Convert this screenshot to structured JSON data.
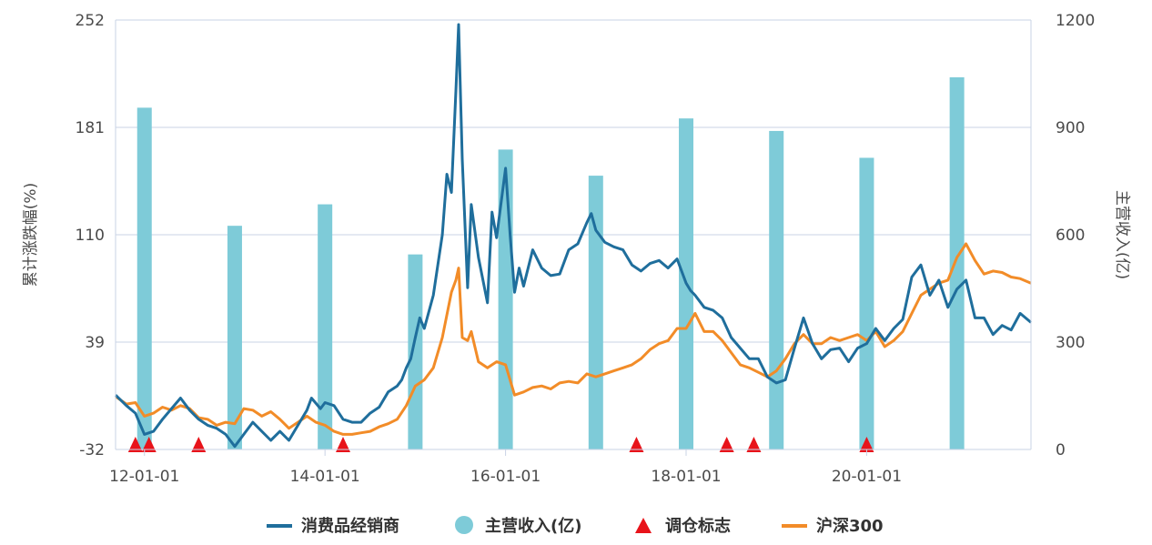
{
  "chart_data": {
    "type": "line",
    "left_axis": {
      "title": "累计涨跌幅(%)",
      "ticks": [
        "252",
        "181",
        "110",
        "39",
        "-32"
      ],
      "range": [
        -32,
        252
      ]
    },
    "right_axis": {
      "title": "主营收入(亿)",
      "ticks": [
        "1200",
        "900",
        "600",
        "300",
        "0"
      ],
      "range": [
        0,
        1200
      ]
    },
    "x_axis": {
      "ticks": [
        "12-01-01",
        "14-01-01",
        "16-01-01",
        "18-01-01",
        "20-01-01"
      ],
      "tick_years": [
        2012,
        2014,
        2016,
        2018,
        2020
      ],
      "range": [
        2011.68,
        2021.82
      ]
    },
    "legend": {
      "placement": "bottom",
      "items": [
        "消费品经销商",
        "主营收入(亿)",
        "调仓标志",
        "沪深300"
      ]
    },
    "colors": {
      "dealer": "#1f6e9c",
      "revenue": "#7ecbd8",
      "marker": "#e8131a",
      "hs300": "#f28c28"
    },
    "revenue_bars": [
      {
        "x": 2012.0,
        "value": 955
      },
      {
        "x": 2013.0,
        "value": 625
      },
      {
        "x": 2014.0,
        "value": 685
      },
      {
        "x": 2015.0,
        "value": 545
      },
      {
        "x": 2016.0,
        "value": 838
      },
      {
        "x": 2017.0,
        "value": 765
      },
      {
        "x": 2018.0,
        "value": 925
      },
      {
        "x": 2019.0,
        "value": 890
      },
      {
        "x": 2020.0,
        "value": 815
      },
      {
        "x": 2021.0,
        "value": 1040
      }
    ],
    "rebalance_markers": [
      2011.9,
      2012.05,
      2012.6,
      2014.2,
      2017.45,
      2018.45,
      2018.75,
      2020.0
    ],
    "series": [
      {
        "name": "消费品经销商",
        "points": [
          [
            2011.68,
            4
          ],
          [
            2011.8,
            -3
          ],
          [
            2011.9,
            -8
          ],
          [
            2012.0,
            -22
          ],
          [
            2012.1,
            -20
          ],
          [
            2012.2,
            -12
          ],
          [
            2012.3,
            -5
          ],
          [
            2012.4,
            2
          ],
          [
            2012.5,
            -6
          ],
          [
            2012.6,
            -12
          ],
          [
            2012.7,
            -16
          ],
          [
            2012.8,
            -18
          ],
          [
            2012.9,
            -22
          ],
          [
            2013.0,
            -30
          ],
          [
            2013.1,
            -22
          ],
          [
            2013.2,
            -14
          ],
          [
            2013.3,
            -20
          ],
          [
            2013.4,
            -26
          ],
          [
            2013.5,
            -20
          ],
          [
            2013.6,
            -26
          ],
          [
            2013.7,
            -16
          ],
          [
            2013.8,
            -6
          ],
          [
            2013.85,
            2
          ],
          [
            2013.95,
            -5
          ],
          [
            2014.0,
            -1
          ],
          [
            2014.1,
            -3
          ],
          [
            2014.2,
            -12
          ],
          [
            2014.3,
            -14
          ],
          [
            2014.4,
            -14
          ],
          [
            2014.5,
            -8
          ],
          [
            2014.6,
            -4
          ],
          [
            2014.7,
            6
          ],
          [
            2014.8,
            10
          ],
          [
            2014.85,
            14
          ],
          [
            2014.9,
            22
          ],
          [
            2014.95,
            28
          ],
          [
            2015.0,
            42
          ],
          [
            2015.05,
            55
          ],
          [
            2015.1,
            48
          ],
          [
            2015.2,
            70
          ],
          [
            2015.3,
            110
          ],
          [
            2015.35,
            150
          ],
          [
            2015.4,
            138
          ],
          [
            2015.45,
            205
          ],
          [
            2015.48,
            249
          ],
          [
            2015.52,
            160
          ],
          [
            2015.58,
            75
          ],
          [
            2015.62,
            130
          ],
          [
            2015.7,
            95
          ],
          [
            2015.8,
            65
          ],
          [
            2015.85,
            125
          ],
          [
            2015.9,
            108
          ],
          [
            2016.0,
            154
          ],
          [
            2016.05,
            110
          ],
          [
            2016.1,
            72
          ],
          [
            2016.15,
            88
          ],
          [
            2016.2,
            76
          ],
          [
            2016.3,
            100
          ],
          [
            2016.4,
            88
          ],
          [
            2016.5,
            83
          ],
          [
            2016.6,
            84
          ],
          [
            2016.7,
            100
          ],
          [
            2016.8,
            104
          ],
          [
            2016.9,
            118
          ],
          [
            2016.95,
            124
          ],
          [
            2017.0,
            113
          ],
          [
            2017.1,
            105
          ],
          [
            2017.2,
            102
          ],
          [
            2017.3,
            100
          ],
          [
            2017.4,
            90
          ],
          [
            2017.5,
            86
          ],
          [
            2017.6,
            91
          ],
          [
            2017.7,
            93
          ],
          [
            2017.8,
            88
          ],
          [
            2017.9,
            94
          ],
          [
            2018.0,
            78
          ],
          [
            2018.05,
            73
          ],
          [
            2018.1,
            70
          ],
          [
            2018.2,
            62
          ],
          [
            2018.3,
            60
          ],
          [
            2018.4,
            55
          ],
          [
            2018.5,
            42
          ],
          [
            2018.6,
            35
          ],
          [
            2018.7,
            28
          ],
          [
            2018.8,
            28
          ],
          [
            2018.9,
            16
          ],
          [
            2019.0,
            12
          ],
          [
            2019.1,
            14
          ],
          [
            2019.2,
            35
          ],
          [
            2019.3,
            55
          ],
          [
            2019.4,
            38
          ],
          [
            2019.5,
            28
          ],
          [
            2019.6,
            34
          ],
          [
            2019.7,
            35
          ],
          [
            2019.8,
            26
          ],
          [
            2019.9,
            35
          ],
          [
            2020.0,
            38
          ],
          [
            2020.1,
            48
          ],
          [
            2020.2,
            40
          ],
          [
            2020.3,
            48
          ],
          [
            2020.4,
            54
          ],
          [
            2020.5,
            82
          ],
          [
            2020.6,
            90
          ],
          [
            2020.7,
            70
          ],
          [
            2020.8,
            80
          ],
          [
            2020.9,
            62
          ],
          [
            2021.0,
            74
          ],
          [
            2021.1,
            80
          ],
          [
            2021.2,
            55
          ],
          [
            2021.3,
            55
          ],
          [
            2021.4,
            44
          ],
          [
            2021.5,
            50
          ],
          [
            2021.6,
            47
          ],
          [
            2021.7,
            58
          ],
          [
            2021.82,
            52
          ]
        ]
      },
      {
        "name": "沪深300",
        "points": [
          [
            2011.68,
            3
          ],
          [
            2011.8,
            -2
          ],
          [
            2011.9,
            -1
          ],
          [
            2012.0,
            -10
          ],
          [
            2012.1,
            -8
          ],
          [
            2012.2,
            -4
          ],
          [
            2012.3,
            -6
          ],
          [
            2012.4,
            -3
          ],
          [
            2012.5,
            -5
          ],
          [
            2012.6,
            -11
          ],
          [
            2012.7,
            -12
          ],
          [
            2012.8,
            -16
          ],
          [
            2012.9,
            -14
          ],
          [
            2013.0,
            -15
          ],
          [
            2013.1,
            -5
          ],
          [
            2013.2,
            -6
          ],
          [
            2013.3,
            -10
          ],
          [
            2013.4,
            -7
          ],
          [
            2013.5,
            -12
          ],
          [
            2013.6,
            -18
          ],
          [
            2013.7,
            -14
          ],
          [
            2013.8,
            -10
          ],
          [
            2013.9,
            -14
          ],
          [
            2014.0,
            -16
          ],
          [
            2014.1,
            -20
          ],
          [
            2014.2,
            -22
          ],
          [
            2014.3,
            -22
          ],
          [
            2014.4,
            -21
          ],
          [
            2014.5,
            -20
          ],
          [
            2014.6,
            -17
          ],
          [
            2014.7,
            -15
          ],
          [
            2014.8,
            -12
          ],
          [
            2014.9,
            -3
          ],
          [
            2015.0,
            10
          ],
          [
            2015.1,
            14
          ],
          [
            2015.2,
            22
          ],
          [
            2015.3,
            42
          ],
          [
            2015.4,
            72
          ],
          [
            2015.45,
            80
          ],
          [
            2015.48,
            88
          ],
          [
            2015.52,
            42
          ],
          [
            2015.58,
            40
          ],
          [
            2015.62,
            46
          ],
          [
            2015.7,
            26
          ],
          [
            2015.8,
            22
          ],
          [
            2015.9,
            26
          ],
          [
            2016.0,
            24
          ],
          [
            2016.1,
            4
          ],
          [
            2016.2,
            6
          ],
          [
            2016.3,
            9
          ],
          [
            2016.4,
            10
          ],
          [
            2016.5,
            8
          ],
          [
            2016.6,
            12
          ],
          [
            2016.7,
            13
          ],
          [
            2016.8,
            12
          ],
          [
            2016.9,
            18
          ],
          [
            2017.0,
            16
          ],
          [
            2017.1,
            18
          ],
          [
            2017.2,
            20
          ],
          [
            2017.3,
            22
          ],
          [
            2017.4,
            24
          ],
          [
            2017.5,
            28
          ],
          [
            2017.6,
            34
          ],
          [
            2017.7,
            38
          ],
          [
            2017.8,
            40
          ],
          [
            2017.9,
            48
          ],
          [
            2018.0,
            48
          ],
          [
            2018.1,
            58
          ],
          [
            2018.2,
            46
          ],
          [
            2018.3,
            46
          ],
          [
            2018.4,
            40
          ],
          [
            2018.5,
            32
          ],
          [
            2018.6,
            24
          ],
          [
            2018.7,
            22
          ],
          [
            2018.8,
            19
          ],
          [
            2018.9,
            16
          ],
          [
            2019.0,
            20
          ],
          [
            2019.1,
            28
          ],
          [
            2019.2,
            38
          ],
          [
            2019.3,
            44
          ],
          [
            2019.4,
            38
          ],
          [
            2019.5,
            38
          ],
          [
            2019.6,
            42
          ],
          [
            2019.7,
            40
          ],
          [
            2019.8,
            42
          ],
          [
            2019.9,
            44
          ],
          [
            2020.0,
            40
          ],
          [
            2020.1,
            46
          ],
          [
            2020.2,
            36
          ],
          [
            2020.3,
            40
          ],
          [
            2020.4,
            46
          ],
          [
            2020.5,
            58
          ],
          [
            2020.6,
            70
          ],
          [
            2020.7,
            74
          ],
          [
            2020.8,
            78
          ],
          [
            2020.9,
            80
          ],
          [
            2021.0,
            95
          ],
          [
            2021.1,
            104
          ],
          [
            2021.2,
            93
          ],
          [
            2021.3,
            84
          ],
          [
            2021.4,
            86
          ],
          [
            2021.5,
            85
          ],
          [
            2021.6,
            82
          ],
          [
            2021.7,
            81
          ],
          [
            2021.82,
            78
          ]
        ]
      }
    ]
  }
}
